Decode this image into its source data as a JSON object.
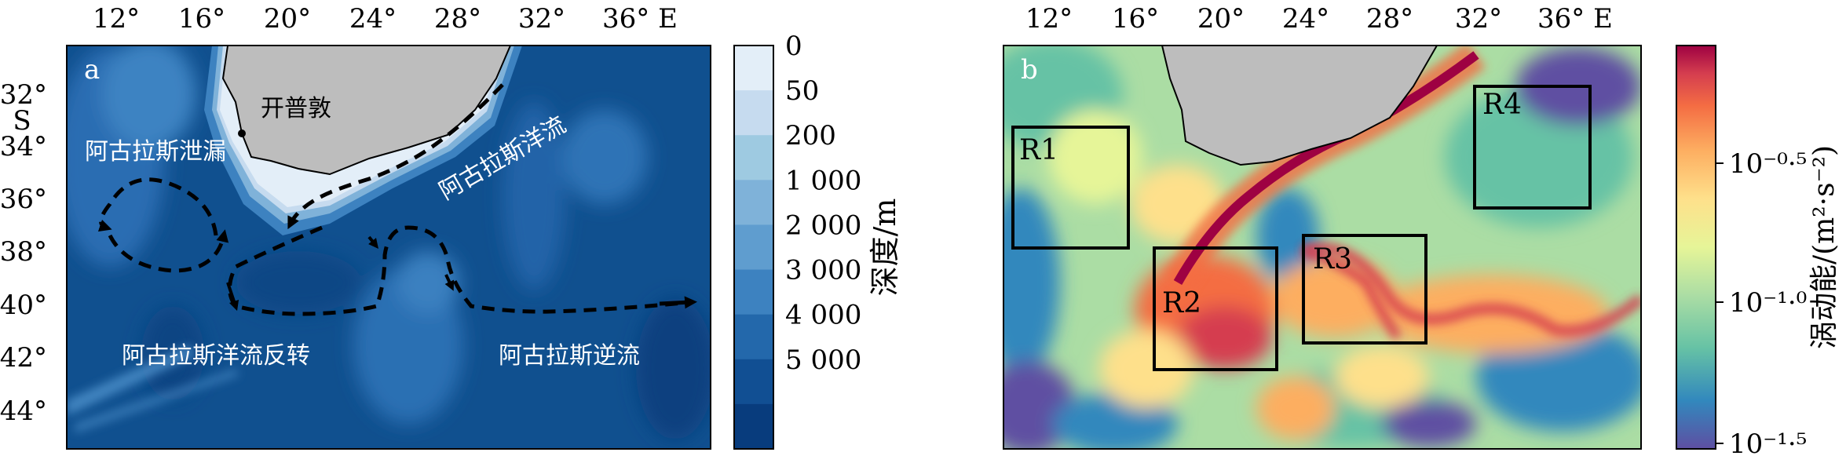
{
  "panel_a": {
    "letter": "a",
    "lon_ticks": [
      "12°",
      "16°",
      "20°",
      "24°",
      "28°",
      "32°",
      "36° E"
    ],
    "lat_ticks": [
      "32°",
      "34°",
      "36°",
      "38°",
      "40°",
      "42°",
      "44°"
    ],
    "lat_hemisphere": "S",
    "labels": {
      "cape_town": "开普敦",
      "agulhas_current": "阿古拉斯洋流",
      "agulhas_leakage": "阿古拉斯泄漏",
      "retroflection": "阿古拉斯洋流反转",
      "return_current": "阿古拉斯逆流"
    },
    "colorbar": {
      "title": "深度/m",
      "levels": [
        "0",
        "50",
        "200",
        "1 000",
        "2 000",
        "3 000",
        "4 000",
        "5 000"
      ],
      "colors": [
        "#e3eef8",
        "#c6dbef",
        "#9ecae1",
        "#7fb2d9",
        "#5f9dcf",
        "#3d82c0",
        "#2368ab",
        "#114f93",
        "#083c7d"
      ]
    }
  },
  "panel_b": {
    "letter": "b",
    "lon_ticks": [
      "12°",
      "16°",
      "20°",
      "24°",
      "28°",
      "32°",
      "36° E"
    ],
    "boxes": [
      "R1",
      "R2",
      "R3",
      "R4"
    ],
    "colorbar": {
      "title": "涡动能/(m²·s⁻²)",
      "ticks": [
        "10⁻⁰·⁵",
        "10⁻¹·⁰",
        "10⁻¹·⁵"
      ],
      "colors": [
        "#5e4fa2",
        "#3288bd",
        "#66c2a5",
        "#abdda4",
        "#e6f598",
        "#fee08b",
        "#fdae61",
        "#f46d43",
        "#d53e4f",
        "#9e0142"
      ]
    }
  }
}
